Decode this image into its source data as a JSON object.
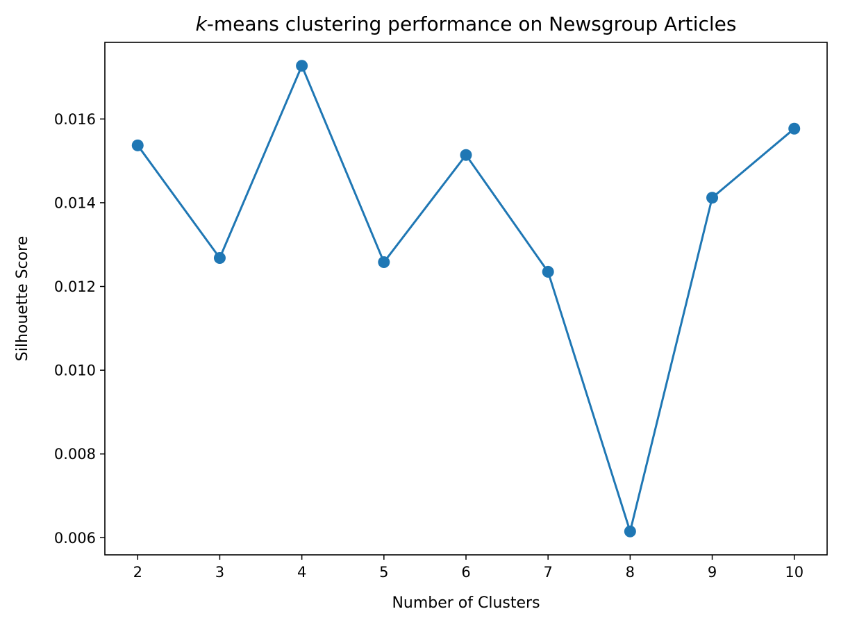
{
  "chart_data": {
    "type": "line",
    "title_italic": "k",
    "title": "-means clustering performance on Newsgroup Articles",
    "xlabel": "Number of Clusters",
    "ylabel": "Silhouette Score",
    "x": [
      2,
      3,
      4,
      5,
      6,
      7,
      8,
      9,
      10
    ],
    "series": [
      {
        "values": [
          0.01537,
          0.01268,
          0.01727,
          0.01258,
          0.01514,
          0.01235,
          0.00615,
          0.01412,
          0.01577
        ],
        "color": "#1f77b4",
        "marker": "circle"
      }
    ],
    "xticks": [
      2,
      3,
      4,
      5,
      6,
      7,
      8,
      9,
      10
    ],
    "xtick_labels": [
      "2",
      "3",
      "4",
      "5",
      "6",
      "7",
      "8",
      "9",
      "10"
    ],
    "yticks": [
      0.006,
      0.008,
      0.01,
      0.012,
      0.014,
      0.016
    ],
    "ytick_labels": [
      "0.006",
      "0.008",
      "0.010",
      "0.012",
      "0.014",
      "0.016"
    ],
    "xlim": [
      1.6,
      10.4
    ],
    "ylim": [
      0.00559,
      0.01783
    ],
    "grid": false,
    "legend": false
  }
}
